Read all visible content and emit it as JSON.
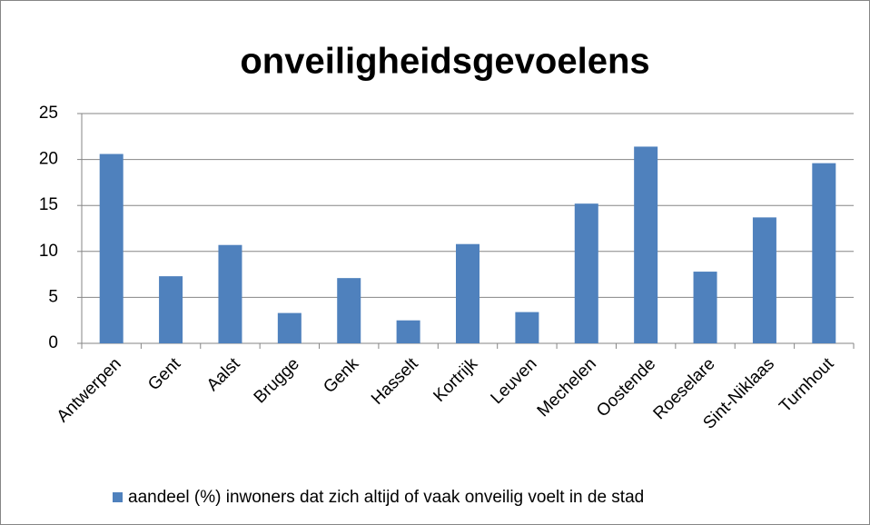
{
  "chart_data": {
    "type": "bar",
    "title": "onveiligheidsgevoelens",
    "categories": [
      "Antwerpen",
      "Gent",
      "Aalst",
      "Brugge",
      "Genk",
      "Hasselt",
      "Kortrijk",
      "Leuven",
      "Mechelen",
      "Oostende",
      "Roeselare",
      "Sint-Niklaas",
      "Turnhout"
    ],
    "series": [
      {
        "name": "aandeel (%) inwoners dat zich altijd of vaak onveilig voelt in de stad",
        "color": "#4f81bd",
        "values": [
          20.6,
          7.3,
          10.7,
          3.3,
          7.1,
          2.5,
          10.8,
          3.4,
          15.2,
          21.4,
          7.8,
          13.7,
          19.6
        ]
      }
    ],
    "ylim": [
      0,
      25
    ],
    "yticks": [
      0,
      5,
      10,
      15,
      20,
      25
    ],
    "grid": true,
    "legend": "bottom"
  }
}
